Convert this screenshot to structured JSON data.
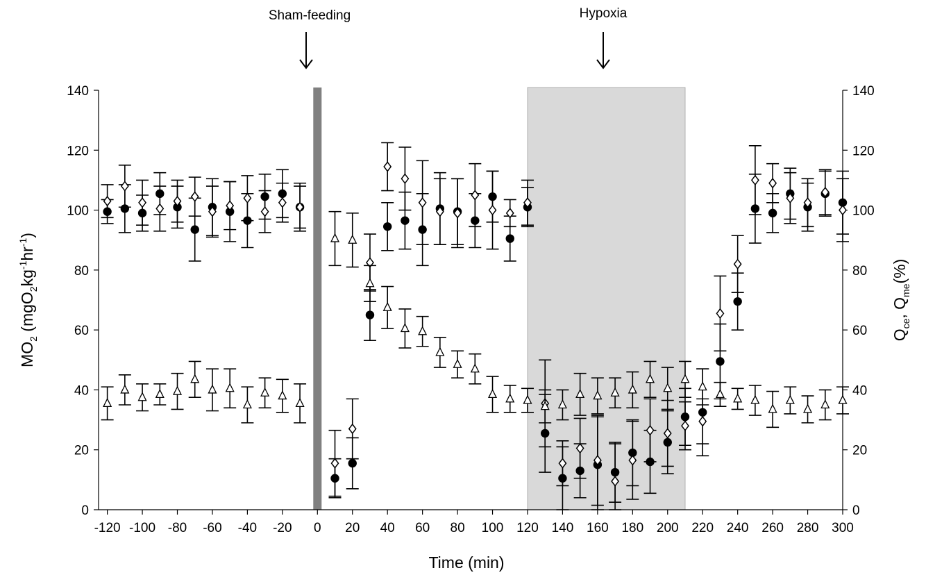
{
  "chart_data": {
    "type": "scatter",
    "x_label": "Time (min)",
    "y_label_left": {
      "base": "MO",
      "sub1": "2",
      "paren_open": " (mgO",
      "sub2": "2",
      "kg": "kg",
      "sup1": "-1",
      "hr": "hr",
      "sup2": "-1",
      "paren_close": ")"
    },
    "y_label_right": {
      "q1": "Q",
      "sub1": "ce",
      "sep": ", ",
      "q2": "Q",
      "sub2": "me",
      "unit": "(%)"
    },
    "xlim": [
      -125,
      300
    ],
    "ylim": [
      0,
      140
    ],
    "x_ticks": [
      "-120",
      "-100",
      "-80",
      "-60",
      "-40",
      "-20",
      "0",
      "20",
      "40",
      "60",
      "80",
      "100",
      "120",
      "140",
      "160",
      "180",
      "200",
      "220",
      "240",
      "260",
      "280",
      "300"
    ],
    "x_tick_values": [
      -120,
      -100,
      -80,
      -60,
      -40,
      -20,
      0,
      20,
      40,
      60,
      80,
      100,
      120,
      140,
      160,
      180,
      200,
      220,
      240,
      260,
      280,
      300
    ],
    "y_ticks": [
      "0",
      "20",
      "40",
      "60",
      "80",
      "100",
      "120",
      "140"
    ],
    "y_tick_values": [
      0,
      20,
      40,
      60,
      80,
      100,
      120,
      140
    ],
    "annotations": [
      {
        "label": "Sham-feeding",
        "x": 0
      },
      {
        "label": "Hypoxia",
        "x": 165
      }
    ],
    "sham_bar_x": 0,
    "hypoxia_region": [
      120,
      210
    ],
    "colors": {
      "shade": "#d9d9d9",
      "shade_edge": "#b0b0b0",
      "sham_bar": "#808080",
      "marker": "#000000"
    },
    "series": [
      {
        "marker": "filled-circle",
        "points": [
          [
            -120,
            99.5,
            4
          ],
          [
            -110,
            100.5,
            8
          ],
          [
            -100,
            99,
            6
          ],
          [
            -90,
            105.5,
            7
          ],
          [
            -80,
            101,
            7
          ],
          [
            -70,
            93.5,
            10.5
          ],
          [
            -60,
            101,
            9.5
          ],
          [
            -50,
            99.5,
            10
          ],
          [
            -40,
            96.5,
            9
          ],
          [
            -30,
            104.5,
            7.5
          ],
          [
            -20,
            105.5,
            8
          ],
          [
            -10,
            101,
            7
          ],
          [
            10,
            10.5,
            6.5
          ],
          [
            20,
            15.5,
            8.5
          ],
          [
            30,
            65,
            8.5
          ],
          [
            40,
            94.5,
            8
          ],
          [
            50,
            96.5,
            9.5
          ],
          [
            60,
            93.5,
            12
          ],
          [
            70,
            100.5,
            12
          ],
          [
            80,
            99.5,
            11
          ],
          [
            90,
            96.5,
            9
          ],
          [
            100,
            104.5,
            8.5
          ],
          [
            110,
            90.5,
            7.5
          ],
          [
            120,
            101,
            6.5
          ],
          [
            130,
            25.5,
            13
          ],
          [
            140,
            10.5,
            10.5
          ],
          [
            150,
            13,
            9
          ],
          [
            160,
            15,
            16
          ],
          [
            170,
            12.5,
            10
          ],
          [
            180,
            19,
            11
          ],
          [
            190,
            16,
            10.5
          ],
          [
            200,
            22.5,
            10.5
          ],
          [
            210,
            31,
            9.5
          ],
          [
            220,
            32.5,
            14.5
          ],
          [
            230,
            49.5,
            12.5
          ],
          [
            240,
            69.5,
            9.5
          ],
          [
            250,
            100.5,
            11.5
          ],
          [
            260,
            99,
            6.5
          ],
          [
            270,
            105.5,
            8.5
          ],
          [
            280,
            101,
            8
          ],
          [
            290,
            105.5,
            7.5
          ],
          [
            300,
            102.5,
            10.5
          ]
        ]
      },
      {
        "marker": "open-diamond",
        "points": [
          [
            -120,
            103,
            5.5
          ],
          [
            -110,
            108,
            7
          ],
          [
            -100,
            102.5,
            7.5
          ],
          [
            -90,
            100.5,
            7.5
          ],
          [
            -80,
            103,
            7
          ],
          [
            -70,
            104.5,
            6.5
          ],
          [
            -60,
            99.5,
            8.5
          ],
          [
            -50,
            101.5,
            8
          ],
          [
            -40,
            104,
            7.5
          ],
          [
            -30,
            99.5,
            7
          ],
          [
            -20,
            102.5,
            6.5
          ],
          [
            -10,
            101,
            8
          ],
          [
            10,
            15.5,
            11
          ],
          [
            20,
            27,
            10
          ],
          [
            30,
            82.5,
            9.5
          ],
          [
            40,
            114.5,
            8
          ],
          [
            50,
            110.5,
            10.5
          ],
          [
            60,
            102.5,
            14
          ],
          [
            70,
            99.5,
            11
          ],
          [
            80,
            99,
            11.5
          ],
          [
            90,
            105,
            10.5
          ],
          [
            100,
            100,
            13
          ],
          [
            110,
            99,
            4.5
          ],
          [
            120,
            102.5,
            7.5
          ],
          [
            130,
            35.5,
            14.5
          ],
          [
            140,
            15.5,
            7.5
          ],
          [
            150,
            20.5,
            10
          ],
          [
            160,
            16.5,
            15
          ],
          [
            170,
            9.5,
            12.5
          ],
          [
            180,
            16.5,
            13
          ],
          [
            190,
            26.5,
            10.5
          ],
          [
            200,
            25.5,
            11
          ],
          [
            210,
            28,
            8
          ],
          [
            220,
            29.5,
            7.5
          ],
          [
            230,
            65.5,
            12.5
          ],
          [
            240,
            82,
            9.5
          ],
          [
            250,
            110,
            11.5
          ],
          [
            260,
            109,
            6.5
          ],
          [
            270,
            104,
            8.5
          ],
          [
            280,
            102.5,
            8
          ],
          [
            290,
            106,
            7.5
          ],
          [
            300,
            100,
            10.5
          ]
        ]
      },
      {
        "marker": "open-triangle",
        "points": [
          [
            -120,
            35.5,
            5.5
          ],
          [
            -110,
            40,
            5
          ],
          [
            -100,
            37.5,
            4.5
          ],
          [
            -90,
            38.5,
            3.5
          ],
          [
            -80,
            39.5,
            6
          ],
          [
            -70,
            43.5,
            6
          ],
          [
            -60,
            40,
            7
          ],
          [
            -50,
            40.5,
            6.5
          ],
          [
            -40,
            35,
            6
          ],
          [
            -30,
            39,
            5
          ],
          [
            -20,
            38,
            5.5
          ],
          [
            -10,
            35.5,
            6.5
          ],
          [
            10,
            90.5,
            9
          ],
          [
            20,
            90,
            9
          ],
          [
            30,
            75.5,
            6
          ],
          [
            40,
            67.5,
            7
          ],
          [
            50,
            60.5,
            6.5
          ],
          [
            60,
            59.5,
            5
          ],
          [
            70,
            52.5,
            5
          ],
          [
            80,
            48.5,
            4.5
          ],
          [
            90,
            47,
            5
          ],
          [
            100,
            38.5,
            6
          ],
          [
            110,
            37,
            4.5
          ],
          [
            120,
            36.5,
            4
          ],
          [
            130,
            34.5,
            5.5
          ],
          [
            140,
            35,
            5
          ],
          [
            150,
            38.5,
            7
          ],
          [
            160,
            38,
            6
          ],
          [
            170,
            39,
            5
          ],
          [
            180,
            40,
            6
          ],
          [
            190,
            43.5,
            6
          ],
          [
            200,
            40.5,
            7
          ],
          [
            210,
            43.5,
            6
          ],
          [
            220,
            41,
            6
          ],
          [
            230,
            38.5,
            4
          ],
          [
            240,
            37,
            3.5
          ],
          [
            250,
            36.5,
            5
          ],
          [
            260,
            33.5,
            6
          ],
          [
            270,
            36.5,
            4.5
          ],
          [
            280,
            33.5,
            4.5
          ],
          [
            290,
            35,
            5
          ],
          [
            300,
            36.5,
            4.5
          ]
        ]
      }
    ]
  }
}
